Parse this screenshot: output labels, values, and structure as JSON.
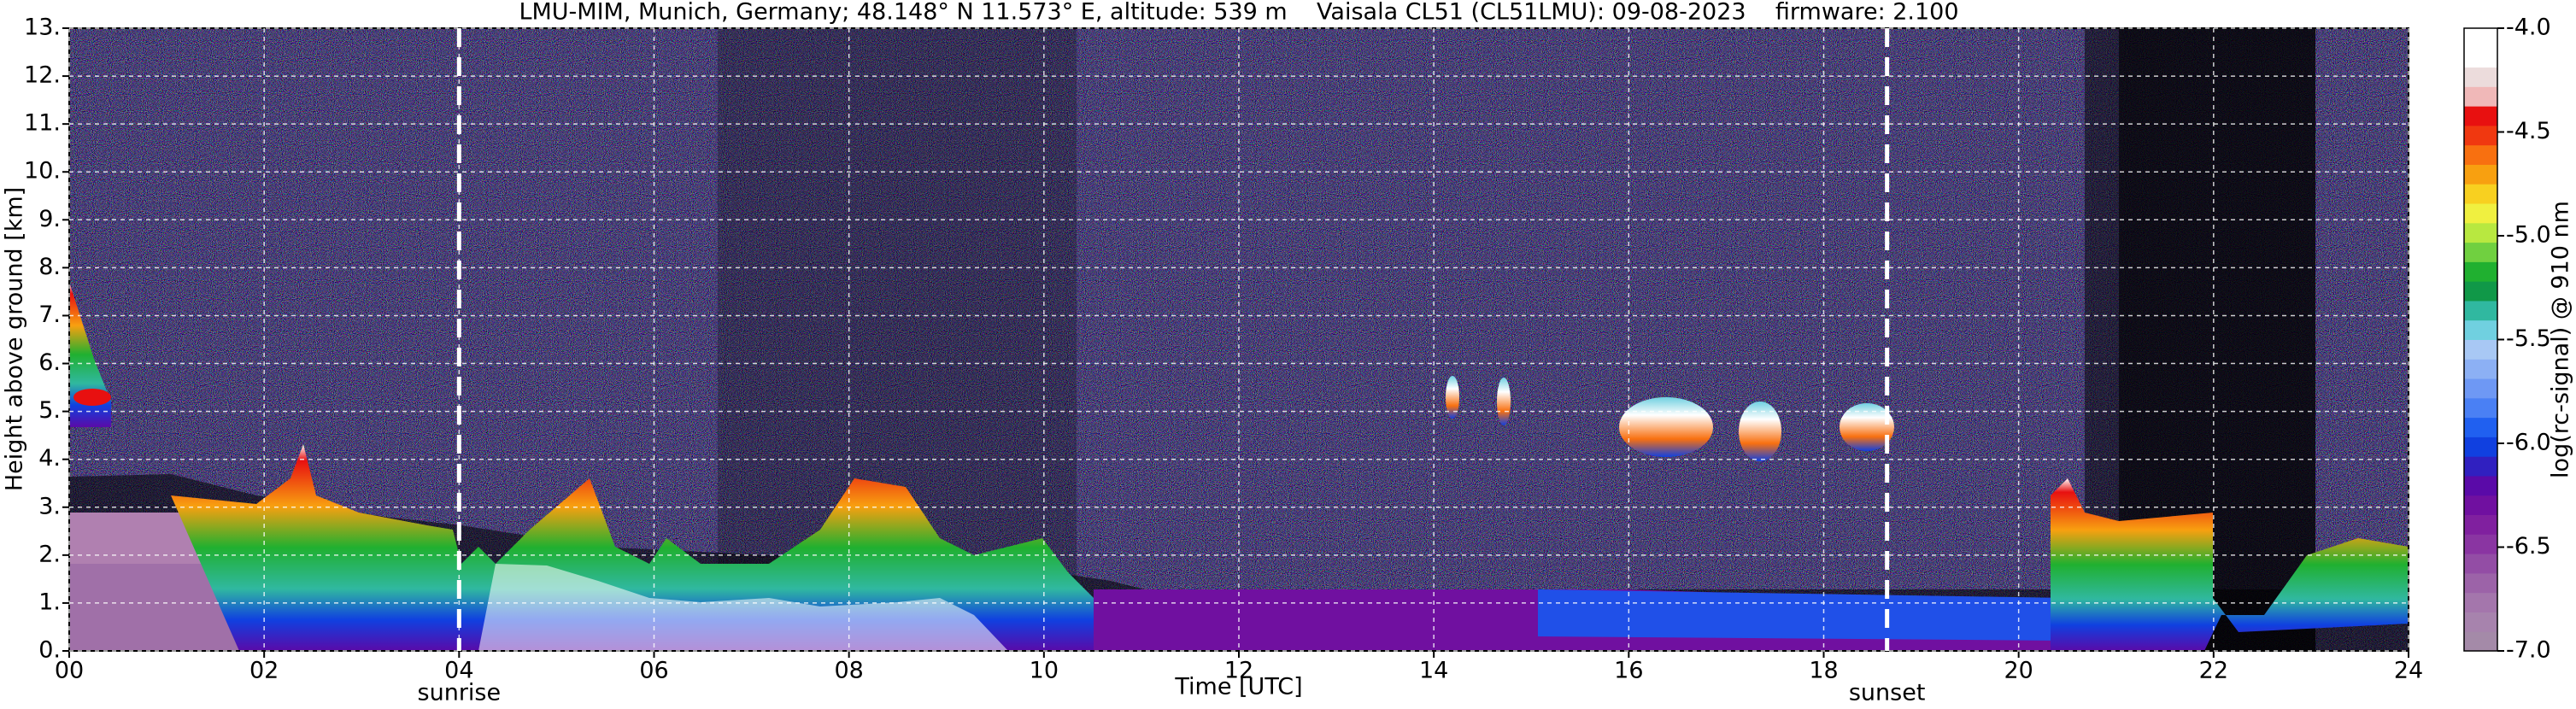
{
  "chart_data": {
    "type": "heatmap",
    "title": "LMU-MIM, Munich, Germany; 48.148° N 11.573° E, altitude: 539 m    Vaisala CL51 (CL51LMU): 09-08-2023    firmware: 2.100",
    "xlabel": "Time [UTC]",
    "ylabel": "Height above ground [km]",
    "xlim": [
      0,
      24
    ],
    "ylim": [
      0,
      13
    ],
    "xticks": [
      {
        "value": 0,
        "label": "00"
      },
      {
        "value": 2,
        "label": "02"
      },
      {
        "value": 4,
        "label": "04"
      },
      {
        "value": 6,
        "label": "06"
      },
      {
        "value": 8,
        "label": "08"
      },
      10,
      12,
      14,
      16,
      18,
      20,
      22,
      24
    ],
    "yticks": [
      {
        "value": 0,
        "label": "0."
      },
      {
        "value": 1,
        "label": "1."
      },
      {
        "value": 2,
        "label": "2."
      },
      {
        "value": 3,
        "label": "3."
      },
      {
        "value": 4,
        "label": "4."
      },
      {
        "value": 5,
        "label": "5."
      },
      {
        "value": 6,
        "label": "6."
      },
      {
        "value": 7,
        "label": "7."
      },
      {
        "value": 8,
        "label": "8."
      },
      {
        "value": 9,
        "label": "9."
      },
      {
        "value": 10,
        "label": "10."
      },
      {
        "value": 11,
        "label": "11."
      },
      {
        "value": 12,
        "label": "12."
      },
      {
        "value": 13,
        "label": "13."
      }
    ],
    "grid": true,
    "annotations": [
      {
        "x": 4.0,
        "label": "sunrise"
      },
      {
        "x": 18.65,
        "label": "sunset"
      }
    ],
    "colorbar": {
      "label": "log(rc-signal) @ 910 nm",
      "clim": [
        -7.0,
        -4.0
      ],
      "ticks": [
        {
          "value": -4.0,
          "label": "-4.0"
        },
        {
          "value": -4.5,
          "label": "-4.5"
        },
        {
          "value": -5.0,
          "label": "-5.0"
        },
        {
          "value": -5.5,
          "label": "-5.5"
        },
        {
          "value": -6.0,
          "label": "-6.0"
        },
        {
          "value": -6.5,
          "label": "-6.5"
        },
        {
          "value": -7.0,
          "label": "-7.0"
        }
      ],
      "colors": [
        "#a48aa8",
        "#a783ad",
        "#a476ac",
        "#9c63a8",
        "#934da5",
        "#8a35a2",
        "#80209f",
        "#7010a0",
        "#5a0aa8",
        "#3020c0",
        "#1040e0",
        "#2060f0",
        "#4a80f4",
        "#6e98f4",
        "#8cb0f4",
        "#a8c8f4",
        "#70d0e0",
        "#30b8a0",
        "#109848",
        "#20b030",
        "#70d040",
        "#b8e840",
        "#f0f040",
        "#f8d020",
        "#f8a010",
        "#f87010",
        "#f03810",
        "#e81010",
        "#f0b8b8",
        "#ecdcdc",
        "#ffffff",
        "#ffffff"
      ]
    }
  }
}
